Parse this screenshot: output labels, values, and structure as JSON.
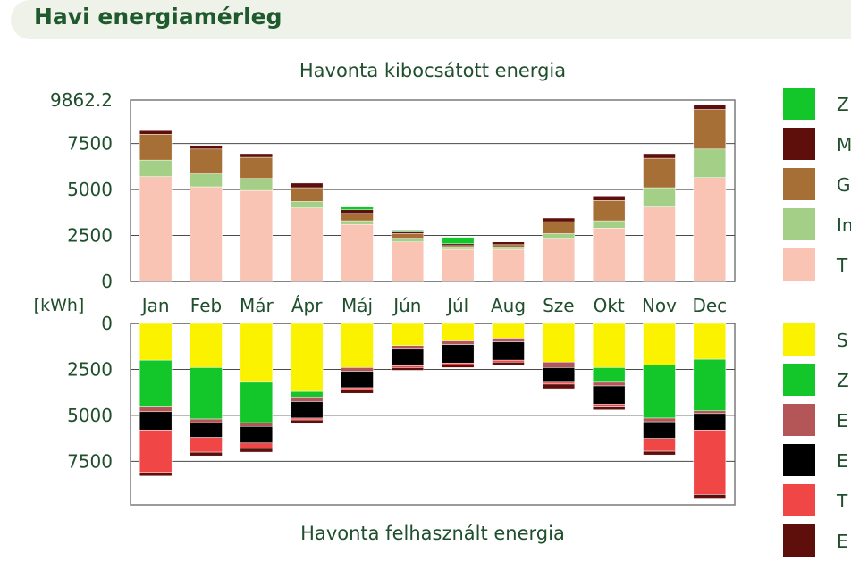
{
  "header": {
    "title": "Havi energiamérleg"
  },
  "chart_data": [
    {
      "type": "bar",
      "stacked": true,
      "title": "Havonta kibocsátott energia",
      "ylim": [
        0,
        9862.2
      ],
      "yticks": [
        "0",
        "2500",
        "5000",
        "7500",
        "9862.2"
      ],
      "categories": [
        "Jan",
        "Feb",
        "Már",
        "Ápr",
        "Máj",
        "Jún",
        "Júl",
        "Aug",
        "Sze",
        "Okt",
        "Nov",
        "Dec"
      ],
      "grid": true,
      "legend": "right",
      "series": [
        {
          "name": "T",
          "color": "#f9c4b4",
          "values": [
            5700,
            5150,
            4950,
            4000,
            3100,
            2150,
            1750,
            1750,
            2350,
            2900,
            4050,
            5650
          ]
        },
        {
          "name": "In",
          "color": "#a3cf86",
          "values": [
            900,
            700,
            650,
            350,
            200,
            200,
            100,
            100,
            250,
            400,
            1050,
            1550
          ]
        },
        {
          "name": "G",
          "color": "#a66f35",
          "values": [
            1400,
            1350,
            1150,
            750,
            400,
            250,
            100,
            150,
            650,
            1100,
            1600,
            2150
          ]
        },
        {
          "name": "M",
          "color": "#5e0f0b",
          "values": [
            200,
            200,
            200,
            250,
            200,
            100,
            100,
            150,
            200,
            250,
            250,
            250
          ]
        },
        {
          "name": "Z",
          "color": "#13c62a",
          "values": [
            0,
            0,
            0,
            0,
            150,
            100,
            350,
            0,
            0,
            0,
            0,
            0
          ]
        }
      ]
    },
    {
      "type": "bar",
      "stacked": true,
      "inverted": true,
      "title": "Havonta felhasznált energia",
      "ylabel": "[kWh]",
      "ylim": [
        0,
        9862.2
      ],
      "yticks": [
        "0",
        "2500",
        "5000",
        "7500"
      ],
      "categories": [
        "Jan",
        "Feb",
        "Már",
        "Ápr",
        "Máj",
        "Jún",
        "Júl",
        "Aug",
        "Sze",
        "Okt",
        "Nov",
        "Dec"
      ],
      "grid": true,
      "legend": "right",
      "series": [
        {
          "name": "S",
          "color": "#fbf200",
          "values": [
            2000,
            2400,
            3200,
            3700,
            2400,
            1200,
            950,
            800,
            2100,
            2400,
            2250,
            1950
          ]
        },
        {
          "name": "Z",
          "color": "#13c62a",
          "values": [
            2500,
            2800,
            2200,
            300,
            0,
            0,
            0,
            0,
            0,
            800,
            2900,
            2800
          ]
        },
        {
          "name": "E",
          "color": "#b45557",
          "values": [
            300,
            200,
            200,
            250,
            200,
            200,
            200,
            200,
            300,
            200,
            200,
            150
          ]
        },
        {
          "name": "E",
          "color": "#000000",
          "values": [
            1000,
            800,
            900,
            900,
            900,
            900,
            1000,
            1000,
            800,
            1000,
            900,
            900
          ]
        },
        {
          "name": "T",
          "color": "#f14646",
          "values": [
            2300,
            800,
            300,
            100,
            100,
            100,
            100,
            100,
            100,
            100,
            700,
            3500
          ]
        },
        {
          "name": "E",
          "color": "#5e0f0b",
          "values": [
            200,
            200,
            200,
            200,
            200,
            150,
            150,
            150,
            250,
            200,
            200,
            200
          ]
        }
      ]
    }
  ]
}
